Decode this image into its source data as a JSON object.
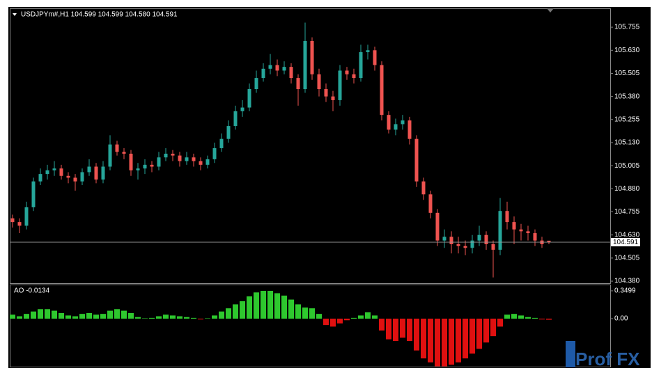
{
  "chart_data": [
    {
      "type": "candlestick",
      "title": "USDJPYm#,H1  104.599 104.599 104.580 104.591",
      "up_color": "#26a69a",
      "down_color": "#ef5350",
      "open": [
        104.72,
        104.7,
        104.68,
        104.78,
        104.92,
        104.96,
        104.98,
        104.99,
        104.95,
        104.94,
        104.92,
        104.97,
        105.0,
        104.93,
        105.0,
        105.12,
        105.08,
        105.07,
        104.98,
        104.99,
        105.01,
        105.0,
        105.05,
        105.07,
        105.06,
        105.03,
        105.05,
        105.03,
        105.01,
        105.04,
        105.1,
        105.15,
        105.22,
        105.3,
        105.32,
        105.42,
        105.48,
        105.53,
        105.55,
        105.52,
        105.54,
        105.48,
        105.42,
        105.68,
        105.5,
        105.42,
        105.38,
        105.36,
        105.52,
        105.5,
        105.48,
        105.62,
        105.63,
        105.55,
        105.28,
        105.2,
        105.23,
        105.25,
        105.15,
        104.92,
        104.85,
        104.75,
        104.6,
        104.62,
        104.58,
        104.57,
        104.56,
        104.6,
        104.63,
        104.58,
        104.55,
        104.76,
        104.7,
        104.66,
        104.65,
        104.64,
        104.6,
        104.599
      ],
      "high": [
        104.74,
        104.72,
        104.81,
        104.94,
        104.99,
        105.01,
        105.03,
        105.01,
        104.97,
        104.96,
        104.99,
        105.04,
        105.02,
        105.03,
        105.17,
        105.14,
        105.1,
        105.09,
        105.02,
        105.04,
        105.03,
        105.08,
        105.1,
        105.09,
        105.08,
        105.08,
        105.07,
        105.05,
        105.06,
        105.13,
        105.18,
        105.25,
        105.33,
        105.36,
        105.45,
        105.52,
        105.56,
        105.61,
        105.58,
        105.57,
        105.56,
        105.5,
        105.78,
        105.7,
        105.53,
        105.45,
        105.41,
        105.55,
        105.54,
        105.53,
        105.66,
        105.66,
        105.65,
        105.57,
        105.3,
        105.26,
        105.28,
        105.27,
        105.17,
        104.94,
        104.87,
        104.77,
        104.66,
        104.65,
        104.62,
        104.6,
        104.63,
        104.68,
        104.65,
        104.6,
        104.83,
        104.81,
        104.73,
        104.69,
        104.68,
        104.66,
        104.62,
        104.599
      ],
      "low": [
        104.67,
        104.64,
        104.66,
        104.76,
        104.9,
        104.93,
        104.95,
        104.93,
        104.91,
        104.87,
        104.9,
        104.95,
        104.91,
        104.91,
        104.98,
        105.06,
        105.04,
        104.95,
        104.93,
        104.96,
        104.97,
        104.98,
        105.03,
        105.03,
        105.0,
        105.01,
        105.0,
        104.98,
        104.99,
        105.02,
        105.08,
        105.13,
        105.2,
        105.27,
        105.3,
        105.4,
        105.46,
        105.5,
        105.49,
        105.5,
        105.45,
        105.33,
        105.4,
        105.47,
        105.38,
        105.35,
        105.3,
        105.33,
        105.47,
        105.45,
        105.46,
        105.58,
        105.52,
        105.25,
        105.18,
        105.17,
        105.2,
        105.12,
        104.89,
        104.82,
        104.72,
        104.57,
        104.56,
        104.53,
        104.53,
        104.52,
        104.53,
        104.57,
        104.55,
        104.4,
        104.52,
        104.66,
        104.58,
        104.6,
        104.6,
        104.57,
        104.56,
        104.58
      ],
      "close": [
        104.7,
        104.68,
        104.78,
        104.92,
        104.96,
        104.98,
        104.99,
        104.95,
        104.94,
        104.92,
        104.97,
        105.0,
        104.93,
        105.0,
        105.12,
        105.08,
        105.07,
        104.98,
        104.99,
        105.01,
        105.0,
        105.05,
        105.07,
        105.06,
        105.03,
        105.05,
        105.03,
        105.01,
        105.04,
        105.1,
        105.15,
        105.22,
        105.3,
        105.32,
        105.42,
        105.48,
        105.53,
        105.55,
        105.52,
        105.54,
        105.48,
        105.42,
        105.68,
        105.5,
        105.42,
        105.38,
        105.36,
        105.52,
        105.5,
        105.48,
        105.62,
        105.63,
        105.55,
        105.28,
        105.2,
        105.23,
        105.25,
        105.15,
        104.92,
        104.85,
        104.75,
        104.6,
        104.62,
        104.58,
        104.57,
        104.56,
        104.6,
        104.63,
        104.58,
        104.55,
        104.76,
        104.7,
        104.66,
        104.65,
        104.64,
        104.6,
        104.58,
        104.591
      ],
      "ylim": [
        104.369,
        105.857
      ],
      "yticks": [
        {
          "value": 104.38,
          "label": "104.380"
        },
        104.505,
        {
          "value": 104.63,
          "label": "104.630"
        },
        104.755,
        {
          "value": 104.88,
          "label": "104.880"
        },
        105.005,
        {
          "value": 105.13,
          "label": "105.130"
        },
        105.255,
        {
          "value": 105.38,
          "label": "105.380"
        },
        105.505,
        {
          "value": 105.63,
          "label": "105.630"
        },
        105.755
      ]
    },
    {
      "type": "bar",
      "title": "AO -0.0134",
      "colors": {
        "positive": "#2ec82e",
        "negative": "#e01010"
      },
      "values": [
        0.05,
        0.03,
        0.06,
        0.09,
        0.12,
        0.12,
        0.1,
        0.07,
        0.04,
        0.03,
        0.06,
        0.07,
        0.05,
        0.06,
        0.1,
        0.12,
        0.1,
        0.07,
        0.02,
        0.005,
        0.01,
        0.03,
        0.05,
        0.04,
        0.03,
        0.02,
        0.01,
        -0.01,
        0.005,
        0.04,
        0.09,
        0.13,
        0.18,
        0.22,
        0.28,
        0.33,
        0.35,
        0.35,
        0.32,
        0.29,
        0.24,
        0.18,
        0.14,
        0.13,
        0.06,
        -0.08,
        -0.1,
        -0.06,
        -0.02,
        0.01,
        0.04,
        0.08,
        0.04,
        -0.15,
        -0.26,
        -0.28,
        -0.24,
        -0.28,
        -0.4,
        -0.5,
        -0.55,
        -0.6,
        -0.6,
        -0.58,
        -0.55,
        -0.5,
        -0.44,
        -0.38,
        -0.3,
        -0.22,
        -0.1,
        0.05,
        0.06,
        0.04,
        0.02,
        0.01,
        -0.01,
        -0.0134
      ],
      "ylim": [
        -0.6037,
        0.42
      ],
      "yticks": [
        0.3499,
        {
          "value": 0,
          "label": "0.00"
        }
      ]
    }
  ],
  "logo": "Prof FX"
}
